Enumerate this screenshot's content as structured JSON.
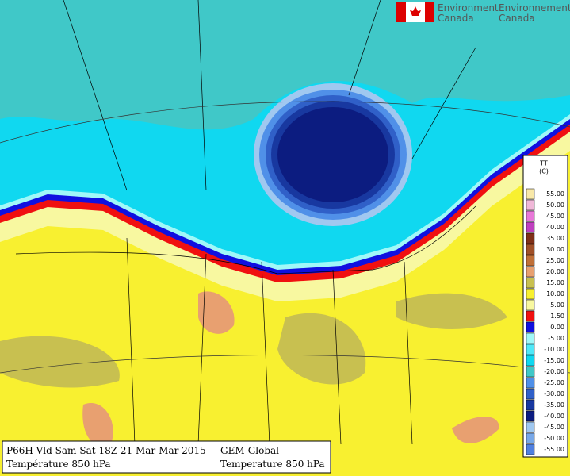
{
  "header": {
    "agency_line1_en": "Environment",
    "agency_line1_fr": "Environnement",
    "agency_line2_en": "Canada",
    "agency_line2_fr": "Canada"
  },
  "legend": {
    "title": "TT",
    "unit": "(C)",
    "entries": [
      {
        "label": "55.00",
        "color": "#f8e8a8"
      },
      {
        "label": "50.00",
        "color": "#f0b8d8"
      },
      {
        "label": "45.00",
        "color": "#e878d8"
      },
      {
        "label": "40.00",
        "color": "#c040c0"
      },
      {
        "label": "35.00",
        "color": "#803018"
      },
      {
        "label": "30.00",
        "color": "#a05028"
      },
      {
        "label": "25.00",
        "color": "#c07038"
      },
      {
        "label": "20.00",
        "color": "#e8a070"
      },
      {
        "label": "15.00",
        "color": "#c8c050"
      },
      {
        "label": "10.00",
        "color": "#f8f030"
      },
      {
        "label": "5.00",
        "color": "#f8f8a0"
      },
      {
        "label": "1.50",
        "color": "#f01010"
      },
      {
        "label": "0.00",
        "color": "#1010e0"
      },
      {
        "label": "-5.00",
        "color": "#a0f8f8"
      },
      {
        "label": "-10.00",
        "color": "#50e8f8"
      },
      {
        "label": "-15.00",
        "color": "#10d8f0"
      },
      {
        "label": "-20.00",
        "color": "#40c8c8"
      },
      {
        "label": "-25.00",
        "color": "#5090e8"
      },
      {
        "label": "-30.00",
        "color": "#3060c8"
      },
      {
        "label": "-35.00",
        "color": "#1838a0"
      },
      {
        "label": "-40.00",
        "color": "#0c1c80"
      },
      {
        "label": "-45.00",
        "color": "#a0c8f0"
      },
      {
        "label": "-50.00",
        "color": "#78a8e8"
      },
      {
        "label": "-55.00",
        "color": "#5080e0"
      }
    ]
  },
  "footer": {
    "run": "P66H Vld Sam-Sat 18Z 21 Mar-Mar 2015",
    "field_fr": "Température 850 hPa",
    "model": "GEM-Global",
    "field_en": "Temperature 850 hPa"
  }
}
